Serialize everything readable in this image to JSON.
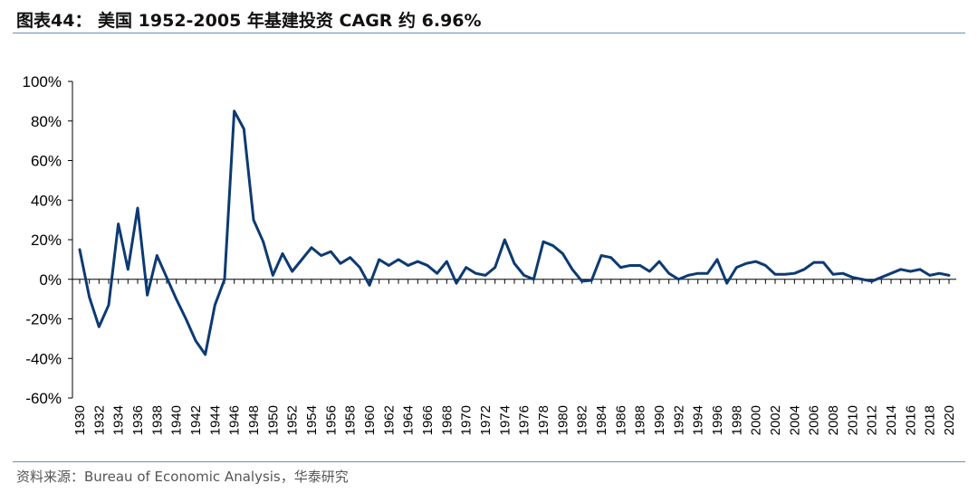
{
  "title": "图表44：  美国 1952-2005 年基建投资 CAGR 约 6.96%",
  "source": "资料来源：Bureau of Economic Analysis，华泰研究",
  "colors": {
    "line": "#0d3a72",
    "rule": "#6b8fb3",
    "axis": "#000000"
  },
  "chart_data": {
    "type": "line",
    "title": "",
    "xlabel": "",
    "ylabel": "",
    "ylim": [
      -60,
      100
    ],
    "yticks": [
      -60,
      -40,
      -20,
      0,
      20,
      40,
      60,
      80,
      100
    ],
    "yticks_format": "percent",
    "grid": false,
    "legend": "none",
    "xtick_labels": [
      "1930",
      "1932",
      "1934",
      "1936",
      "1938",
      "1940",
      "1942",
      "1944",
      "1946",
      "1948",
      "1950",
      "1952",
      "1954",
      "1956",
      "1958",
      "1960",
      "1962",
      "1964",
      "1966",
      "1968",
      "1970",
      "1972",
      "1974",
      "1976",
      "1978",
      "1980",
      "1982",
      "1984",
      "1986",
      "1988",
      "1990",
      "1992",
      "1994",
      "1996",
      "1998",
      "2000",
      "2002",
      "2004",
      "2006",
      "2008",
      "2010",
      "2012",
      "2014",
      "2016",
      "2018",
      "2020"
    ],
    "x": [
      1930,
      1931,
      1932,
      1933,
      1934,
      1935,
      1936,
      1937,
      1938,
      1939,
      1940,
      1941,
      1942,
      1943,
      1944,
      1945,
      1946,
      1947,
      1948,
      1949,
      1950,
      1951,
      1952,
      1953,
      1954,
      1955,
      1956,
      1957,
      1958,
      1959,
      1960,
      1961,
      1962,
      1963,
      1964,
      1965,
      1966,
      1967,
      1968,
      1969,
      1970,
      1971,
      1972,
      1973,
      1974,
      1975,
      1976,
      1977,
      1978,
      1979,
      1980,
      1981,
      1982,
      1983,
      1984,
      1985,
      1986,
      1987,
      1988,
      1989,
      1990,
      1991,
      1992,
      1993,
      1994,
      1995,
      1996,
      1997,
      1998,
      1999,
      2000,
      2001,
      2002,
      2003,
      2004,
      2005,
      2006,
      2007,
      2008,
      2009,
      2010,
      2011,
      2012,
      2013,
      2014,
      2015,
      2016,
      2017,
      2018,
      2019,
      2020
    ],
    "series": [
      {
        "values": [
          15,
          -9,
          -24,
          -13,
          28,
          5,
          36,
          -8,
          12,
          1,
          -10,
          -20,
          -31,
          -38,
          -13,
          0,
          85,
          76,
          30,
          19,
          2,
          13,
          4,
          10,
          16,
          12,
          14,
          8,
          11,
          6,
          -3,
          10,
          7,
          10,
          7,
          9,
          7,
          3,
          9,
          -2,
          6,
          3,
          2,
          6,
          20,
          8,
          2,
          0,
          19,
          17,
          13,
          5,
          -1,
          -0.5,
          12,
          11,
          6,
          7,
          7,
          4,
          9,
          3,
          0,
          2,
          3,
          3,
          10,
          -2,
          6,
          8,
          9,
          7,
          2.5,
          2.5,
          3,
          5,
          8.5,
          8.5,
          2.5,
          3,
          1,
          0,
          -1,
          1,
          3,
          5,
          4,
          5,
          2,
          3,
          2
        ]
      }
    ]
  }
}
